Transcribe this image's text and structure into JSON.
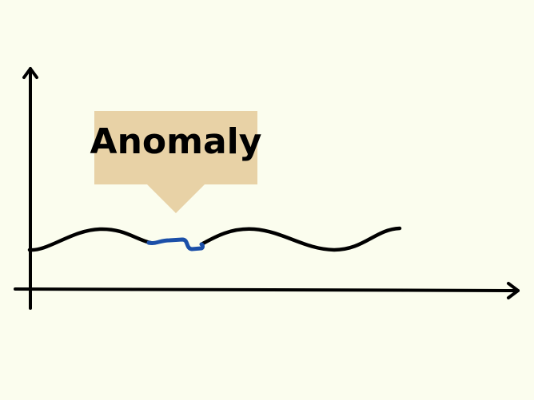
{
  "callout": {
    "label": "Anomaly",
    "box_color": "#e8d2a6"
  },
  "colors": {
    "background": "#fbfdee",
    "axis": "#000000",
    "signal": "#000000",
    "anomaly": "#1b4fa8"
  },
  "diagram": {
    "type": "time-series anomaly illustration",
    "signal_shape": "sine wave",
    "anomaly_shape": "flattened segment"
  }
}
